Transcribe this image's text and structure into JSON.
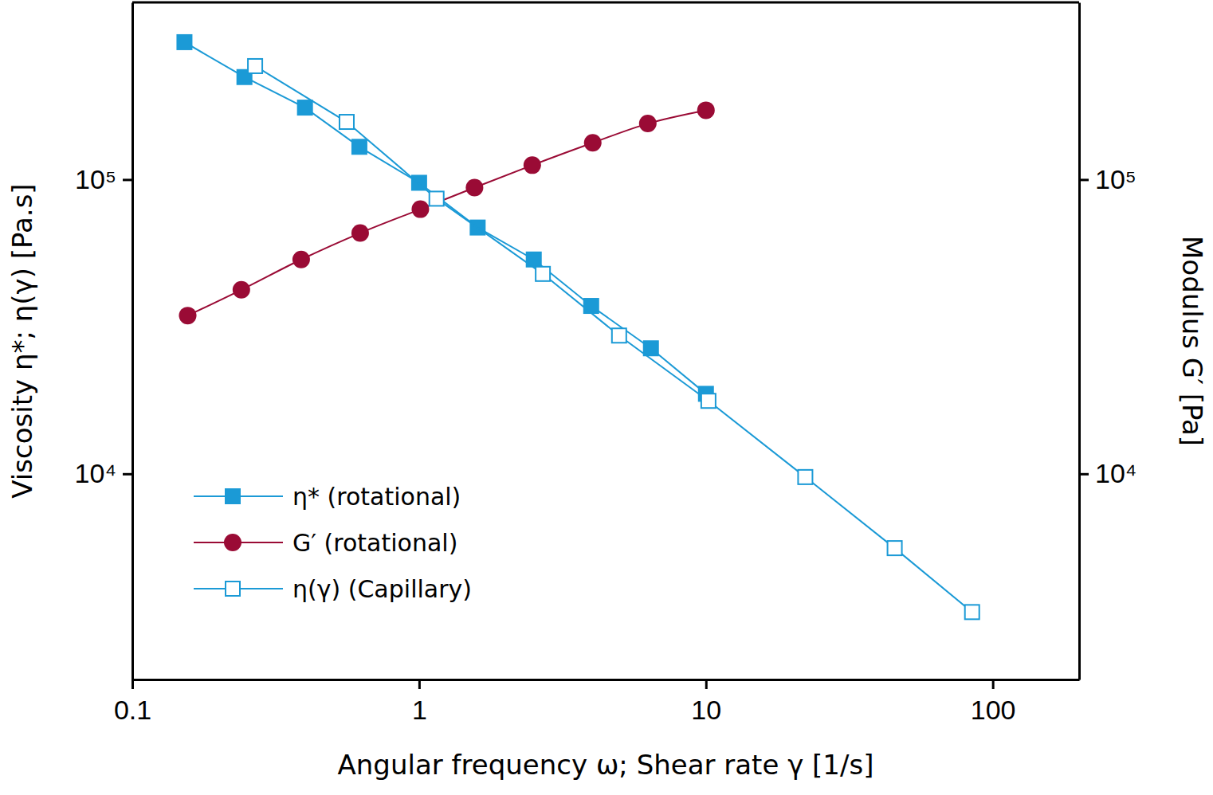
{
  "chart_data": {
    "type": "line",
    "x_label": "Angular frequency ω; Shear rate γ [1/s]",
    "y_label": "Viscosity η*; η(γ) [Pa.s]",
    "y2_label": "Modulus G′ [Pa]",
    "log": true,
    "grid": false,
    "legend": "lower left",
    "xlim": [
      0.1,
      200
    ],
    "xticks": [
      0.1,
      1,
      10,
      100
    ],
    "ylim": [
      2000,
      400000
    ],
    "yticks": [
      {
        "value": 10000,
        "label": "10⁴"
      },
      {
        "value": 100000,
        "label": "10⁵"
      }
    ],
    "y2lim": [
      2000,
      400000
    ],
    "y2ticks": [
      {
        "value": 10000,
        "label": "10⁴"
      },
      {
        "value": 100000,
        "label": "10⁵"
      }
    ],
    "series": [
      {
        "name": "η* (rotational)",
        "color": "#1b9ad6",
        "marker": "square",
        "line_style": "solid",
        "x": [
          0.152,
          0.246,
          0.4,
          0.619,
          1.0,
          1.6,
          2.51,
          3.98,
          6.43,
          10
        ],
        "values": [
          293000,
          223000,
          175600,
          129200,
          97500,
          68700,
          53500,
          37200,
          26700,
          18700
        ]
      },
      {
        "name": "G′ (rotational)",
        "color": "#9a0b35",
        "marker": "circle",
        "line_style": "smooth",
        "axis": "y2",
        "x": [
          0.156,
          0.24,
          0.388,
          0.623,
          1.01,
          1.56,
          2.48,
          4.03,
          6.27,
          10
        ],
        "values": [
          34500,
          42200,
          53500,
          65800,
          79300,
          93900,
          111900,
          133300,
          155000,
          172000
        ]
      },
      {
        "name": "η(γ) (Capillary)",
        "color": "#1b9ad6",
        "marker": "square-open",
        "line_style": "solid",
        "x": [
          0.268,
          0.559,
          1.15,
          2.7,
          4.98,
          10.2,
          22.2,
          45.5,
          84.7
        ],
        "values": [
          243000,
          157000,
          86100,
          47800,
          29500,
          17700,
          9750,
          5590,
          3390
        ]
      }
    ]
  }
}
